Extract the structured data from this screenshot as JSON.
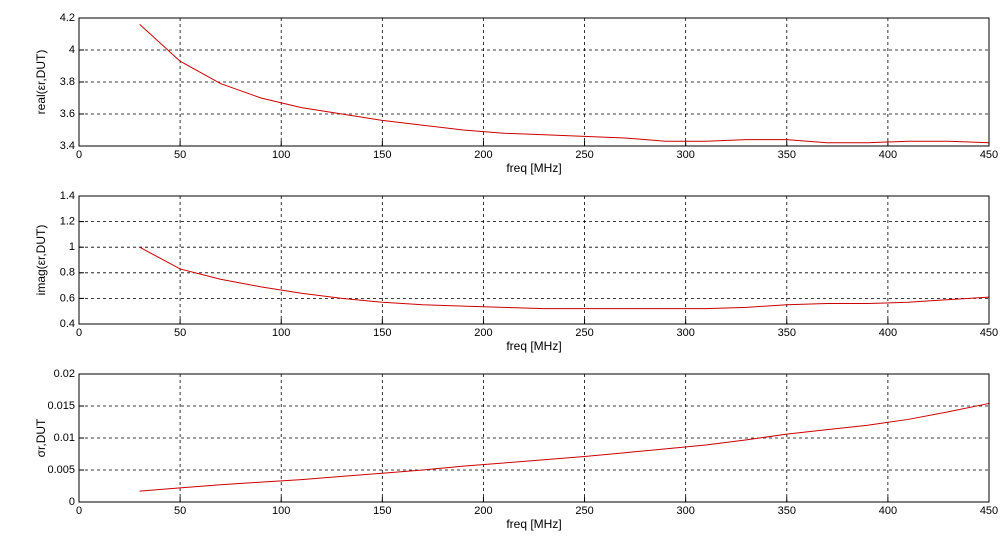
{
  "chart_data": [
    {
      "type": "line",
      "ylabel": "real(εr,DUT)",
      "xlabel": "freq [MHz]",
      "color": "#cc0000",
      "grid": true,
      "x": [
        30,
        50,
        70,
        90,
        110,
        130,
        150,
        170,
        190,
        210,
        230,
        250,
        270,
        290,
        310,
        330,
        350,
        370,
        390,
        410,
        430,
        450
      ],
      "values": [
        4.16,
        3.93,
        3.79,
        3.7,
        3.64,
        3.6,
        3.56,
        3.53,
        3.5,
        3.48,
        3.47,
        3.46,
        3.45,
        3.43,
        3.43,
        3.44,
        3.44,
        3.42,
        3.42,
        3.43,
        3.43,
        3.42
      ],
      "xlim": [
        0,
        450
      ],
      "xticks": [
        0,
        50,
        100,
        150,
        200,
        250,
        300,
        350,
        400,
        450
      ],
      "ylim": [
        3.4,
        4.2
      ],
      "yticks": [
        3.4,
        3.6,
        3.8,
        4,
        4.2
      ]
    },
    {
      "type": "line",
      "ylabel": "imag(εr,DUT)",
      "xlabel": "freq [MHz]",
      "color": "#cc0000",
      "grid": true,
      "x": [
        30,
        50,
        70,
        90,
        110,
        130,
        150,
        170,
        190,
        210,
        230,
        250,
        270,
        290,
        310,
        330,
        350,
        370,
        390,
        410,
        430,
        450
      ],
      "values": [
        1.0,
        0.83,
        0.75,
        0.69,
        0.64,
        0.6,
        0.57,
        0.55,
        0.54,
        0.53,
        0.52,
        0.52,
        0.52,
        0.52,
        0.52,
        0.53,
        0.55,
        0.56,
        0.56,
        0.57,
        0.59,
        0.61
      ],
      "xlim": [
        0,
        450
      ],
      "xticks": [
        0,
        50,
        100,
        150,
        200,
        250,
        300,
        350,
        400,
        450
      ],
      "ylim": [
        0.4,
        1.4
      ],
      "yticks": [
        0.4,
        0.6,
        0.8,
        1,
        1.2,
        1.4
      ]
    },
    {
      "type": "line",
      "ylabel": "σr,DUT",
      "xlabel": "freq [MHz]",
      "color": "#cc0000",
      "grid": true,
      "x": [
        30,
        50,
        70,
        90,
        110,
        130,
        150,
        170,
        190,
        210,
        230,
        250,
        270,
        290,
        310,
        330,
        350,
        370,
        390,
        410,
        430,
        450
      ],
      "values": [
        0.0017,
        0.0022,
        0.0027,
        0.0031,
        0.0035,
        0.004,
        0.0045,
        0.005,
        0.0056,
        0.0061,
        0.0066,
        0.0071,
        0.0077,
        0.0083,
        0.0089,
        0.0097,
        0.0106,
        0.0113,
        0.012,
        0.0129,
        0.0141,
        0.0154
      ],
      "xlim": [
        0,
        450
      ],
      "xticks": [
        0,
        50,
        100,
        150,
        200,
        250,
        300,
        350,
        400,
        450
      ],
      "ylim": [
        0,
        0.02
      ],
      "yticks": [
        0,
        0.005,
        0.01,
        0.015,
        0.02
      ]
    }
  ]
}
